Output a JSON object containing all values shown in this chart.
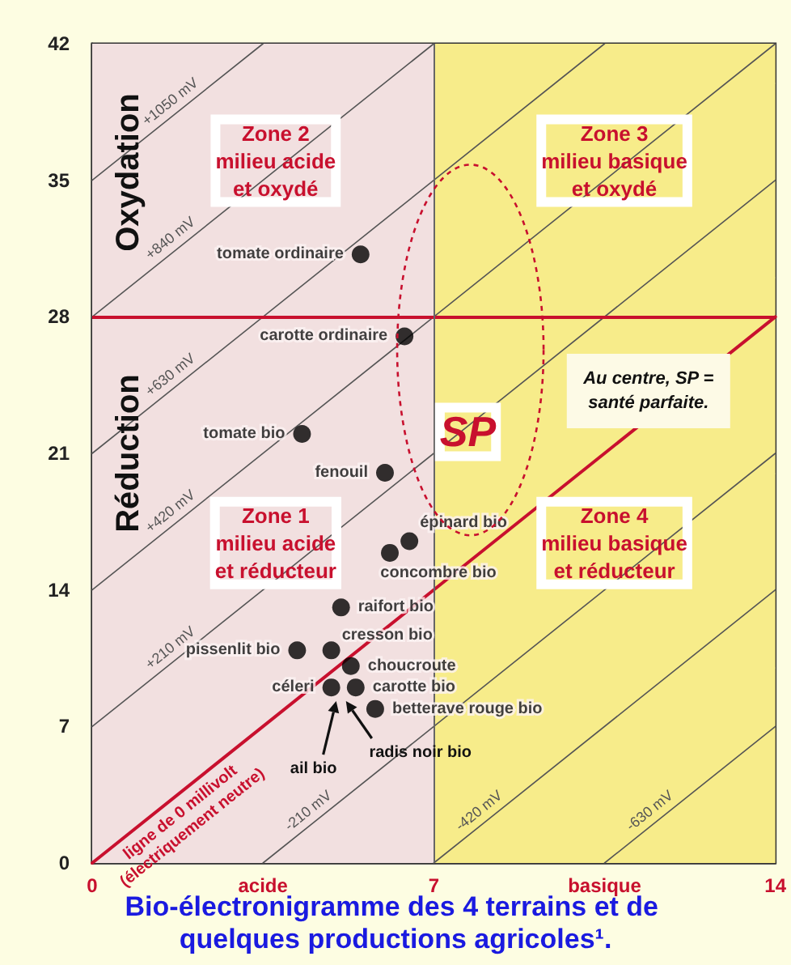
{
  "chart_data": {
    "type": "scatter",
    "title": "Bio-électronigramme des 4 terrains et de quelques productions agricoles¹.",
    "xlim": [
      0,
      14
    ],
    "xticks": [
      0,
      {
        "value": 3.5,
        "label": "acide"
      },
      7,
      {
        "value": 10.5,
        "label": "basique"
      },
      14
    ],
    "ylim": [
      0,
      42
    ],
    "yticks": [
      0,
      7,
      14,
      21,
      28,
      35,
      42
    ],
    "grid": "y",
    "legend": false,
    "marker": "circle",
    "series": [
      {
        "name": "tomate ordinaire",
        "color": "#000000",
        "x": [
          5.5
        ],
        "values": [
          31.2
        ]
      },
      {
        "name": "carotte ordinaire",
        "color": "#000000",
        "x": [
          6.4
        ],
        "values": [
          27.0
        ]
      },
      {
        "name": "tomate bio",
        "color": "#000000",
        "x": [
          4.3
        ],
        "values": [
          22.0
        ]
      },
      {
        "name": "fenouil",
        "color": "#000000",
        "x": [
          6.0
        ],
        "values": [
          20.0
        ]
      },
      {
        "name": "épinard bio",
        "color": "#000000",
        "x": [
          6.5
        ],
        "values": [
          16.5
        ]
      },
      {
        "name": "concombre bio",
        "color": "#000000",
        "x": [
          6.1
        ],
        "values": [
          15.9
        ]
      },
      {
        "name": "raifort bio",
        "color": "#000000",
        "x": [
          5.1
        ],
        "values": [
          13.1
        ]
      },
      {
        "name": "cresson bio",
        "color": "#000000",
        "x": [
          4.9
        ],
        "values": [
          10.9
        ]
      },
      {
        "name": "pissenlit bio",
        "color": "#000000",
        "x": [
          4.2
        ],
        "values": [
          10.9
        ]
      },
      {
        "name": "choucroute",
        "color": "#000000",
        "x": [
          5.3
        ],
        "values": [
          10.1
        ]
      },
      {
        "name": "céleri",
        "color": "#000000",
        "x": [
          4.9
        ],
        "values": [
          9.0
        ]
      },
      {
        "name": "carotte bio",
        "color": "#000000",
        "x": [
          5.4
        ],
        "values": [
          9.0
        ]
      },
      {
        "name": "betterave rouge bio",
        "color": "#000000",
        "x": [
          5.8
        ],
        "values": [
          7.9
        ]
      },
      {
        "name": "+1050 mV",
        "type": "line",
        "color": "#555555",
        "marker": "none",
        "x": [
          0,
          3.5
        ],
        "values": [
          35,
          42
        ]
      },
      {
        "name": "+840 mV",
        "type": "line",
        "color": "#555555",
        "marker": "none",
        "x": [
          0,
          7
        ],
        "values": [
          28,
          42
        ]
      },
      {
        "name": "+630 mV",
        "type": "line",
        "color": "#555555",
        "marker": "none",
        "x": [
          0,
          10.5
        ],
        "values": [
          21,
          42
        ]
      },
      {
        "name": "+420 mV",
        "type": "line",
        "color": "#555555",
        "marker": "none",
        "x": [
          0,
          14
        ],
        "values": [
          14,
          42
        ]
      },
      {
        "name": "+210 mV",
        "type": "line",
        "color": "#555555",
        "marker": "none",
        "x": [
          0,
          14
        ],
        "values": [
          7,
          35
        ]
      },
      {
        "name": "ligne de 0 millivolt (électriquement neutre)",
        "type": "line",
        "color": "#c8102e",
        "marker": "none",
        "x": [
          0,
          14
        ],
        "values": [
          0,
          28
        ]
      },
      {
        "name": "-210 mV",
        "type": "line",
        "color": "#555555",
        "marker": "none",
        "x": [
          3.5,
          14
        ],
        "values": [
          0,
          21
        ]
      },
      {
        "name": "-420 mV",
        "type": "line",
        "color": "#555555",
        "marker": "none",
        "x": [
          7,
          14
        ],
        "values": [
          0,
          14
        ]
      },
      {
        "name": "-630 mV",
        "type": "line",
        "color": "#555555",
        "marker": "none",
        "x": [
          10.5,
          14
        ],
        "values": [
          0,
          7
        ]
      }
    ],
    "ref_lines": [
      {
        "axis": "y",
        "value": 28,
        "color": "#c8102e"
      },
      {
        "axis": "x",
        "value": 7,
        "color": "#666666"
      }
    ],
    "bands": [
      {
        "axis": "x",
        "from": 0,
        "to": 7,
        "color": "#f2e0e0"
      },
      {
        "axis": "x",
        "from": 7,
        "to": 14,
        "color": "#f7ec8a"
      }
    ],
    "annotations": [
      "Oxydation",
      "Réduction",
      "Zone 2\nmilieu acide\net oxydé",
      "Zone 3\nmilieu basique\net oxydé",
      "Zone 1\nmilieu acide\net réducteur",
      "Zone 4\nmilieu basique\net réducteur",
      "SP",
      "Au centre, SP =\nsanté parfaite.",
      {
        "text": "ail bio",
        "x": 5.0,
        "y": 8.3
      },
      {
        "text": "radis noir bio",
        "x": 5.2,
        "y": 8.3
      }
    ]
  }
}
